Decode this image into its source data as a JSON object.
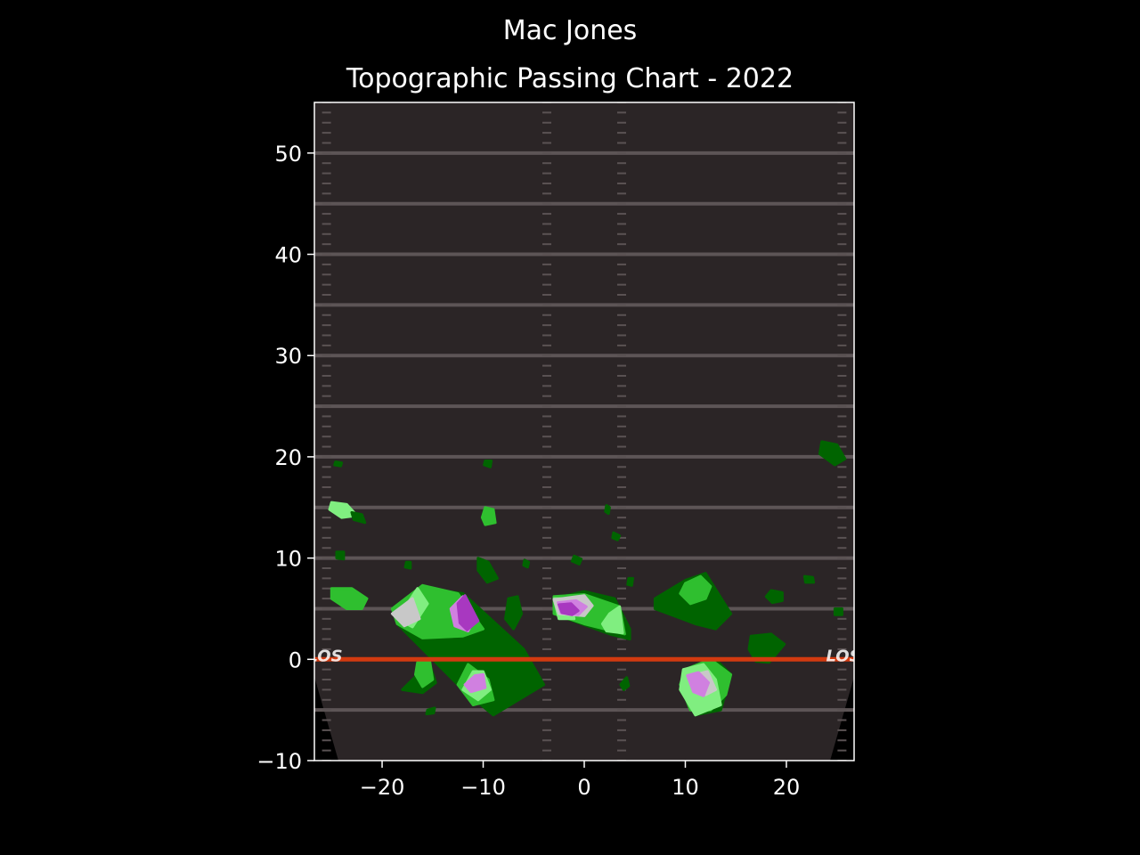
{
  "chart_data": {
    "type": "heatmap",
    "title": "Mac Jones",
    "subtitle": "Topographic Passing Chart - 2022",
    "xlabel": "",
    "ylabel": "",
    "xlim": [
      -26.7,
      26.7
    ],
    "ylim": [
      -10,
      55
    ],
    "x_ticks": [
      -20,
      -10,
      0,
      10,
      20
    ],
    "y_ticks": [
      -10,
      0,
      10,
      20,
      30,
      40,
      50
    ],
    "x_tick_labels": [
      "−20",
      "−10",
      "0",
      "10",
      "20"
    ],
    "y_tick_labels": [
      "−10",
      "0",
      "10",
      "20",
      "30",
      "40",
      "50"
    ],
    "grid": false,
    "background": "football field",
    "line_of_scrimmage_label": "LOS",
    "line_of_scrimmage_y": 0,
    "yard_lines_y": [
      -5,
      5,
      10,
      15,
      20,
      25,
      30,
      35,
      40,
      45,
      50
    ],
    "levels": [
      {
        "name": "level-1",
        "color": "#006400"
      },
      {
        "name": "level-2",
        "color": "#2fbf2f"
      },
      {
        "name": "level-3",
        "color": "#80ee80"
      },
      {
        "name": "level-4",
        "color": "#c8c8c8"
      },
      {
        "name": "level-5",
        "color": "#d080e0"
      },
      {
        "name": "level-6",
        "color": "#a838c0"
      }
    ],
    "regions": [
      {
        "level": 1,
        "points": [
          [
            -18.5,
            3.5
          ],
          [
            -16,
            7
          ],
          [
            -12,
            6.5
          ],
          [
            -6,
            1
          ],
          [
            -4,
            -2.5
          ],
          [
            -9,
            -5.5
          ],
          [
            -12,
            -3
          ]
        ]
      },
      {
        "level": 2,
        "points": [
          [
            -19,
            5
          ],
          [
            -16,
            7.3
          ],
          [
            -12.5,
            6.5
          ],
          [
            -10,
            3
          ],
          [
            -12,
            2.3
          ],
          [
            -16,
            2.1
          ],
          [
            -18.5,
            3.5
          ]
        ]
      },
      {
        "level": 2,
        "points": [
          [
            -11.5,
            -0.5
          ],
          [
            -9.5,
            -2
          ],
          [
            -9,
            -4
          ],
          [
            -11,
            -4.5
          ],
          [
            -12.5,
            -2.5
          ]
        ]
      },
      {
        "level": 3,
        "points": [
          [
            -16.5,
            7
          ],
          [
            -15.5,
            5.5
          ],
          [
            -17,
            3.2
          ],
          [
            -18.5,
            4
          ]
        ]
      },
      {
        "level": 3,
        "points": [
          [
            -11,
            -1.2
          ],
          [
            -10,
            -1.2
          ],
          [
            -9.3,
            -3
          ],
          [
            -10.5,
            -4
          ],
          [
            -12,
            -3
          ]
        ]
      },
      {
        "level": 4,
        "points": [
          [
            -17,
            6
          ],
          [
            -16.3,
            4
          ],
          [
            -17.8,
            3.3
          ],
          [
            -19,
            4.5
          ]
        ]
      },
      {
        "level": 5,
        "points": [
          [
            -13.2,
            5
          ],
          [
            -12,
            6.2
          ],
          [
            -10.8,
            4
          ],
          [
            -11.5,
            2.8
          ],
          [
            -12.8,
            3.3
          ]
        ]
      },
      {
        "level": 6,
        "points": [
          [
            -12.5,
            5.5
          ],
          [
            -11.8,
            6.3
          ],
          [
            -10.5,
            3.8
          ],
          [
            -11.6,
            2.9
          ],
          [
            -12.3,
            3.6
          ]
        ]
      },
      {
        "level": 5,
        "points": [
          [
            -10.8,
            -1.6
          ],
          [
            -10,
            -1.5
          ],
          [
            -9.8,
            -2.8
          ],
          [
            -11.2,
            -3.2
          ],
          [
            -11.8,
            -2.5
          ]
        ]
      },
      {
        "level": 1,
        "points": [
          [
            -3,
            6
          ],
          [
            0,
            6.7
          ],
          [
            3,
            6
          ],
          [
            4.5,
            3
          ],
          [
            4.5,
            2
          ],
          [
            2.5,
            2.5
          ],
          [
            -3,
            4.5
          ]
        ]
      },
      {
        "level": 2,
        "points": [
          [
            -3,
            6.2
          ],
          [
            0,
            6.4
          ],
          [
            3.5,
            5.2
          ],
          [
            4,
            2.5
          ],
          [
            0,
            3.5
          ],
          [
            -3,
            4.5
          ]
        ]
      },
      {
        "level": 3,
        "points": [
          [
            -3,
            6
          ],
          [
            -1.5,
            6
          ],
          [
            -1,
            4
          ],
          [
            -2.5,
            4
          ]
        ]
      },
      {
        "level": 3,
        "points": [
          [
            2.5,
            4.5
          ],
          [
            3.5,
            5.2
          ],
          [
            3.8,
            2.6
          ],
          [
            2.2,
            2.8
          ],
          [
            1.8,
            3.5
          ]
        ]
      },
      {
        "level": 4,
        "points": [
          [
            -3,
            5.9
          ],
          [
            0,
            6.3
          ],
          [
            0.8,
            5.3
          ],
          [
            0,
            4.3
          ],
          [
            -2.5,
            4.5
          ]
        ]
      },
      {
        "level": 5,
        "points": [
          [
            -2.6,
            5.6
          ],
          [
            -0.8,
            5.8
          ],
          [
            0.2,
            5.2
          ],
          [
            -0.6,
            4.4
          ],
          [
            -2.3,
            4.6
          ]
        ]
      },
      {
        "level": 6,
        "points": [
          [
            -2.5,
            5.4
          ],
          [
            -1.3,
            5.5
          ],
          [
            -0.6,
            4.8
          ],
          [
            -1.2,
            4.4
          ],
          [
            -2.2,
            4.6
          ]
        ]
      },
      {
        "level": 1,
        "points": [
          [
            7,
            6
          ],
          [
            10,
            7.8
          ],
          [
            12,
            8.5
          ],
          [
            14.5,
            4.5
          ],
          [
            13,
            3
          ],
          [
            11,
            3.5
          ],
          [
            7,
            5
          ]
        ]
      },
      {
        "level": 2,
        "points": [
          [
            10,
            7.5
          ],
          [
            11.5,
            8.2
          ],
          [
            12.5,
            7.2
          ],
          [
            12,
            6
          ],
          [
            10.5,
            5.5
          ],
          [
            9.5,
            6.5
          ]
        ]
      },
      {
        "level": 1,
        "points": [
          [
            10,
            -1
          ],
          [
            13,
            0
          ],
          [
            14.5,
            -1.5
          ],
          [
            13.5,
            -5
          ],
          [
            11,
            -5.5
          ],
          [
            9.5,
            -3
          ]
        ]
      },
      {
        "level": 2,
        "points": [
          [
            10,
            -1
          ],
          [
            12.5,
            0
          ],
          [
            14.5,
            -1.5
          ],
          [
            14,
            -3.5
          ],
          [
            12.5,
            -5
          ],
          [
            10.5,
            -5
          ],
          [
            9.5,
            -2.5
          ]
        ]
      },
      {
        "level": 3,
        "points": [
          [
            9.8,
            -1
          ],
          [
            11.8,
            -0.5
          ],
          [
            13,
            -2
          ],
          [
            13.5,
            -4.5
          ],
          [
            11,
            -5.5
          ],
          [
            9.5,
            -3
          ]
        ]
      },
      {
        "level": 4,
        "points": [
          [
            11,
            -1.5
          ],
          [
            12.2,
            -1.2
          ],
          [
            13,
            -3
          ],
          [
            12,
            -3.5
          ],
          [
            10.8,
            -2.8
          ]
        ]
      },
      {
        "level": 5,
        "points": [
          [
            10.2,
            -1.6
          ],
          [
            11.3,
            -1.3
          ],
          [
            12.3,
            -2.3
          ],
          [
            11.8,
            -3.6
          ],
          [
            10.8,
            -3.2
          ]
        ]
      },
      {
        "level": 1,
        "points": [
          [
            16.5,
            2.3
          ],
          [
            18.5,
            2.5
          ],
          [
            19.8,
            1.5
          ],
          [
            18.3,
            -0.3
          ],
          [
            17,
            -0.2
          ],
          [
            16.3,
            1
          ]
        ]
      },
      {
        "level": 1,
        "points": [
          [
            23.5,
            21.5
          ],
          [
            25,
            21.2
          ],
          [
            25.8,
            19.8
          ],
          [
            24.8,
            19.2
          ],
          [
            23.3,
            20.3
          ]
        ]
      },
      {
        "level": 1,
        "points": [
          [
            -16.5,
            -1.5
          ],
          [
            -15.3,
            -0.5
          ],
          [
            -14.7,
            -2.3
          ],
          [
            -16,
            -3.3
          ],
          [
            -18,
            -3
          ]
        ]
      },
      {
        "level": 2,
        "points": [
          [
            -16.5,
            -0.3
          ],
          [
            -15.3,
            -0.1
          ],
          [
            -15,
            -2
          ],
          [
            -16,
            -2.7
          ],
          [
            -16.7,
            -1.5
          ]
        ]
      },
      {
        "level": 1,
        "points": [
          [
            -10.5,
            10
          ],
          [
            -9.5,
            9.6
          ],
          [
            -8.6,
            8
          ],
          [
            -9.6,
            7.6
          ],
          [
            -10.5,
            8.8
          ]
        ]
      },
      {
        "level": 2,
        "points": [
          [
            -9.8,
            15
          ],
          [
            -9,
            14.8
          ],
          [
            -8.8,
            13.5
          ],
          [
            -9.8,
            13.3
          ],
          [
            -10.1,
            14
          ]
        ]
      },
      {
        "level": 3,
        "points": [
          [
            -25,
            15.5
          ],
          [
            -23.5,
            15.3
          ],
          [
            -22.5,
            14.2
          ],
          [
            -24,
            14
          ],
          [
            -25.2,
            14.8
          ]
        ]
      },
      {
        "level": 1,
        "points": [
          [
            -23,
            14.5
          ],
          [
            -22,
            14.3
          ],
          [
            -21.7,
            13.5
          ],
          [
            -22.8,
            13.8
          ]
        ]
      },
      {
        "level": 2,
        "points": [
          [
            -25,
            7
          ],
          [
            -23,
            7
          ],
          [
            -21.5,
            6
          ],
          [
            -22,
            5
          ],
          [
            -23.5,
            5
          ],
          [
            -25,
            6
          ]
        ]
      },
      {
        "level": 1,
        "points": [
          [
            -7.5,
            6
          ],
          [
            -6.6,
            6.2
          ],
          [
            -6.2,
            4.5
          ],
          [
            -7,
            3
          ],
          [
            -7.8,
            4
          ]
        ]
      },
      {
        "level": 1,
        "points": [
          [
            4,
            -2
          ],
          [
            4.2,
            -1.8
          ],
          [
            4.4,
            -2.6
          ],
          [
            3.9,
            -3
          ],
          [
            3.6,
            -2.5
          ]
        ]
      },
      {
        "level": 1,
        "points": [
          [
            18.5,
            6.8
          ],
          [
            19.6,
            6.6
          ],
          [
            19.6,
            5.8
          ],
          [
            18.6,
            5.6
          ],
          [
            18,
            6.2
          ]
        ]
      },
      {
        "level": 1,
        "points": [
          [
            21.8,
            8.2
          ],
          [
            22.6,
            8.1
          ],
          [
            22.7,
            7.6
          ],
          [
            21.9,
            7.6
          ]
        ]
      },
      {
        "level": 1,
        "points": [
          [
            24.8,
            5
          ],
          [
            25.5,
            5
          ],
          [
            25.5,
            4.4
          ],
          [
            24.8,
            4.4
          ]
        ]
      },
      {
        "level": 1,
        "points": [
          [
            -24.5,
            10.6
          ],
          [
            -23.8,
            10.6
          ],
          [
            -23.8,
            9.9
          ],
          [
            -24.5,
            10
          ]
        ]
      },
      {
        "level": 1,
        "points": [
          [
            -9.8,
            19.6
          ],
          [
            -9.2,
            19.6
          ],
          [
            -9.3,
            19
          ],
          [
            -9.9,
            19.2
          ]
        ]
      },
      {
        "level": 1,
        "points": [
          [
            -24.6,
            19.5
          ],
          [
            -24,
            19.4
          ],
          [
            -24.1,
            19.1
          ],
          [
            -24.7,
            19.2
          ]
        ]
      },
      {
        "level": 1,
        "points": [
          [
            -5.9,
            9.8
          ],
          [
            -5.5,
            9.6
          ],
          [
            -5.6,
            9.1
          ],
          [
            -6,
            9.3
          ]
        ]
      },
      {
        "level": 1,
        "points": [
          [
            -1,
            10.2
          ],
          [
            -0.3,
            9.9
          ],
          [
            -0.5,
            9.4
          ],
          [
            -1.2,
            9.7
          ]
        ]
      },
      {
        "level": 1,
        "points": [
          [
            2.9,
            12.5
          ],
          [
            3.5,
            12.2
          ],
          [
            3.3,
            11.8
          ],
          [
            2.8,
            12
          ]
        ]
      },
      {
        "level": 1,
        "points": [
          [
            2.2,
            15.2
          ],
          [
            2.5,
            15
          ],
          [
            2.4,
            14.4
          ],
          [
            2.1,
            14.6
          ]
        ]
      },
      {
        "level": 1,
        "points": [
          [
            4.4,
            8
          ],
          [
            4.8,
            8
          ],
          [
            4.7,
            7.3
          ],
          [
            4.3,
            7.4
          ]
        ]
      },
      {
        "level": 1,
        "points": [
          [
            -15.5,
            -5
          ],
          [
            -14.8,
            -4.8
          ],
          [
            -14.9,
            -5.3
          ],
          [
            -15.6,
            -5.4
          ]
        ]
      },
      {
        "level": 1,
        "points": [
          [
            -17.6,
            9.6
          ],
          [
            -17.2,
            9.6
          ],
          [
            -17.2,
            9
          ],
          [
            -17.7,
            9.1
          ]
        ]
      }
    ]
  }
}
